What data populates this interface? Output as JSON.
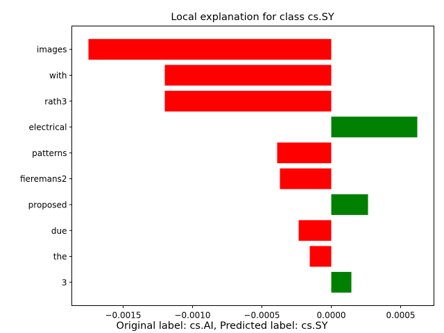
{
  "chart_data": {
    "type": "bar",
    "orientation": "horizontal",
    "title": "Local explanation for class cs.SY",
    "caption": "Original label: cs.AI, Predicted label: cs.SY",
    "categories": [
      "images",
      "with",
      "rath3",
      "electrical",
      "patterns",
      "fieremans2",
      "proposed",
      "due",
      "the",
      "3"
    ],
    "values": [
      -0.00175,
      -0.0012,
      -0.0012,
      0.00062,
      -0.00039,
      -0.00037,
      0.000265,
      -0.000235,
      -0.000155,
      0.000145
    ],
    "xlim": [
      -0.00187,
      0.00074
    ],
    "xticks": [
      -0.0015,
      -0.001,
      -0.0005,
      0.0,
      0.0005
    ],
    "xtick_labels": [
      "−0.0015",
      "−0.0010",
      "−0.0005",
      "0.0000",
      "0.0005"
    ],
    "grid": false,
    "colors": {
      "positive": "#008000",
      "negative": "#ff0000"
    }
  }
}
